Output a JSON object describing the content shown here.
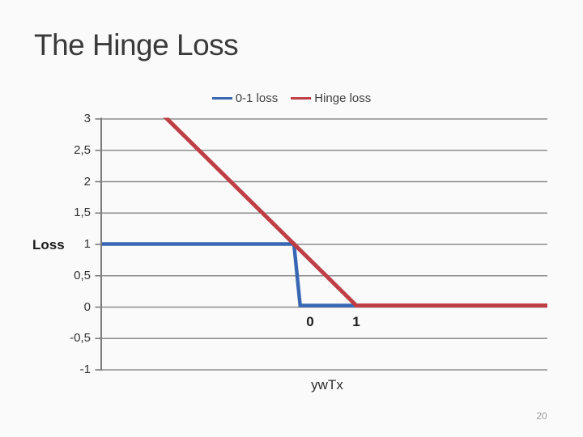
{
  "slide": {
    "title": "The Hinge Loss",
    "page_number": "20"
  },
  "chart_data": {
    "type": "line",
    "xlabel": "ywTx",
    "ylabel": "Loss",
    "x_tick_labels": [
      "0",
      "1"
    ],
    "y_tick_labels": [
      "3",
      "2,5",
      "2",
      "1,5",
      "1",
      "0,5",
      "0",
      "-0,5",
      "-1"
    ],
    "x_tick_values": [
      0,
      1
    ],
    "y_tick_values": [
      3,
      2.5,
      2,
      1.5,
      1,
      0.5,
      0,
      -0.5,
      -1
    ],
    "xlim": [
      -3.5,
      4.2
    ],
    "ylim": [
      -1,
      3
    ],
    "grid": true,
    "legend_position": "top-center",
    "colors": {
      "gridline": "#8C8C8C",
      "axis": "#7C7C7C",
      "background": "#FAFAFA"
    },
    "series": [
      {
        "name": "0-1 loss",
        "color": "#3A67B4",
        "points": [
          [
            -3.5,
            1
          ],
          [
            0,
            1
          ],
          [
            0.1,
            0
          ],
          [
            4.2,
            0
          ]
        ]
      },
      {
        "name": "Hinge loss",
        "color": "#BE4046",
        "points": [
          [
            -2.2,
            3.2
          ],
          [
            1,
            0
          ],
          [
            4.2,
            0
          ]
        ]
      }
    ]
  }
}
